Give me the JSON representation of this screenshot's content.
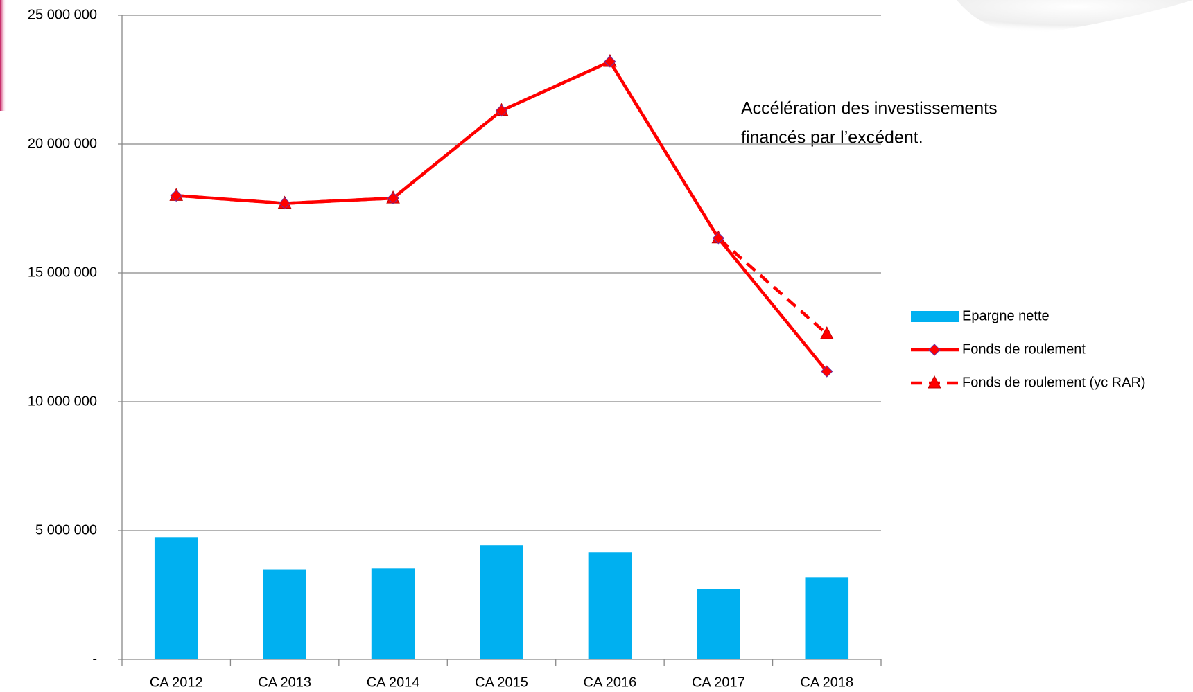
{
  "chart_data": {
    "type": "bar-line",
    "categories": [
      "CA 2012",
      "CA 2013",
      "CA 2014",
      "CA 2015",
      "CA 2016",
      "CA 2017",
      "CA 2018"
    ],
    "series": [
      {
        "name": "Epargne nette",
        "type": "bar",
        "color": "#00b0f0",
        "values": [
          4750000,
          3480000,
          3540000,
          4430000,
          4160000,
          2740000,
          3190000
        ]
      },
      {
        "name": "Fonds de roulement",
        "type": "line",
        "marker": "diamond",
        "dashed": false,
        "color": "#ff0000",
        "values": [
          18000000,
          17700000,
          17900000,
          21300000,
          23200000,
          16350000,
          11180000
        ]
      },
      {
        "name": "Fonds de roulement (yc RAR)",
        "type": "line",
        "marker": "triangle",
        "dashed": true,
        "color": "#ff0000",
        "values": [
          18000000,
          17700000,
          17900000,
          21300000,
          23200000,
          16350000,
          12630000
        ]
      }
    ],
    "annotation": [
      "Accélération des investissements",
      "financés par l’excédent."
    ],
    "ylim": [
      0,
      25000000
    ],
    "yticks": [
      {
        "value": 0,
        "label": "-"
      },
      {
        "value": 5000000,
        "label": "5 000 000"
      },
      {
        "value": 10000000,
        "label": "10 000 000"
      },
      {
        "value": 15000000,
        "label": "15 000 000"
      },
      {
        "value": 20000000,
        "label": "20 000 000"
      },
      {
        "value": 25000000,
        "label": "25 000 000"
      }
    ],
    "grid": true,
    "legend": "right"
  }
}
